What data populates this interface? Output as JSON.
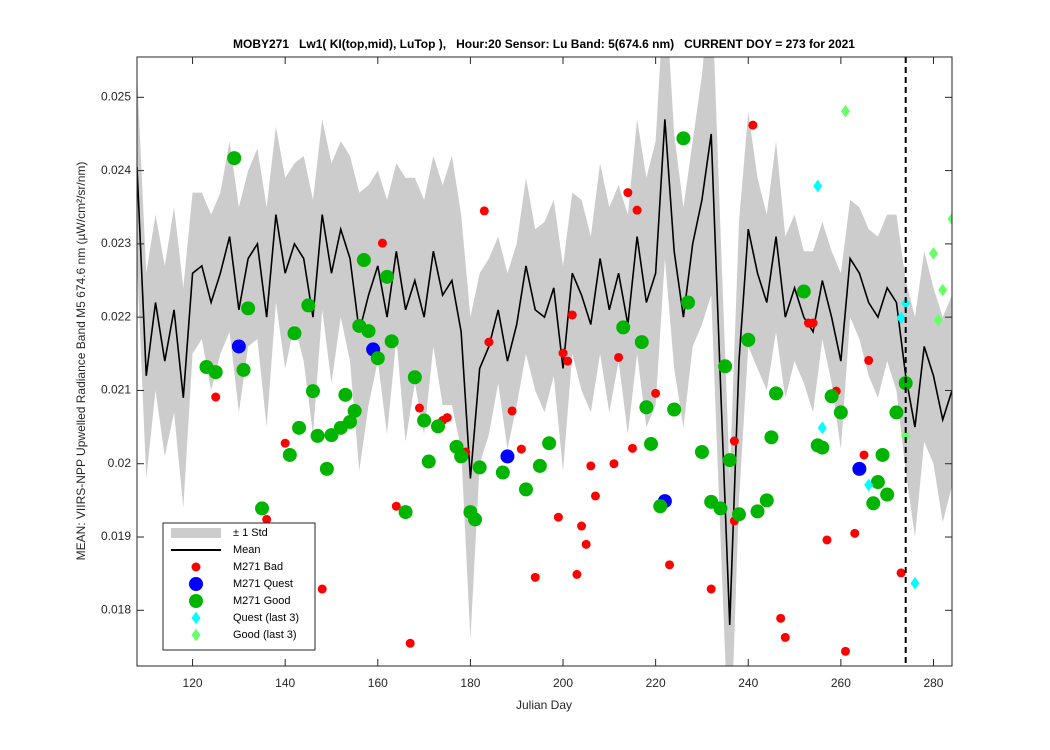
{
  "chart_data": {
    "type": "scatter",
    "title": "MOBY271   Lw1( KI(top,mid), LuTop ),   Hour:20 Sensor: Lu Band: 5(674.6 nm)   CURRENT DOY = 273 for 2021",
    "xlabel": "Julian Day",
    "ylabel": "MEAN: VIIRS-NPP Upwelled Radiance Band M5 674.6 nm (µW/cm²/sr/nm)",
    "xlim": [
      108,
      284
    ],
    "ylim": [
      0.01724,
      0.02555
    ],
    "xticks": [
      120,
      140,
      160,
      180,
      200,
      220,
      240,
      260,
      280
    ],
    "yticks": [
      0.018,
      0.019,
      0.02,
      0.021,
      0.022,
      0.023,
      0.024,
      0.025
    ],
    "vline": 274,
    "legend": "southwest",
    "series": [
      {
        "name": "± 1 Std",
        "kind": "band",
        "color": "#cccccc",
        "x": [
          108,
          110,
          112,
          114,
          116,
          118,
          120,
          122,
          124,
          126,
          128,
          130,
          132,
          134,
          136,
          138,
          140,
          142,
          144,
          146,
          148,
          150,
          152,
          154,
          156,
          158,
          160,
          162,
          164,
          166,
          168,
          170,
          172,
          174,
          176,
          178,
          180,
          182,
          184,
          186,
          188,
          190,
          192,
          194,
          196,
          198,
          200,
          202,
          204,
          206,
          208,
          210,
          212,
          214,
          216,
          218,
          220,
          222,
          224,
          226,
          228,
          230,
          232,
          234,
          236,
          238,
          240,
          242,
          244,
          246,
          248,
          250,
          252,
          254,
          256,
          258,
          260,
          262,
          264,
          266,
          268,
          270,
          272,
          274,
          276,
          278,
          280,
          282,
          284
        ],
        "values": [
          0.0013,
          0.0014,
          0.0012,
          0.0013,
          0.0014,
          0.0015,
          0.0011,
          0.001,
          0.0012,
          0.0011,
          0.0013,
          0.0014,
          0.0012,
          0.0013,
          0.0015,
          0.0012,
          0.0013,
          0.0011,
          0.0014,
          0.0016,
          0.0013,
          0.0015,
          0.0012,
          0.0014,
          0.0019,
          0.0015,
          0.0013,
          0.0016,
          0.0012,
          0.0018,
          0.0014,
          0.0016,
          0.0013,
          0.0015,
          0.0017,
          0.0016,
          0.0022,
          0.0013,
          0.0012,
          0.001,
          0.0012,
          0.0011,
          0.0012,
          0.0011,
          0.0013,
          0.0012,
          0.0014,
          0.0011,
          0.0013,
          0.0012,
          0.0013,
          0.0014,
          0.0012,
          0.0015,
          0.0016,
          0.0017,
          0.0018,
          0.0019,
          0.0016,
          0.0015,
          0.0014,
          0.0017,
          0.0022,
          0.0021,
          0.002,
          0.0019,
          0.0016,
          0.0013,
          0.0012,
          0.0013,
          0.0011,
          0.001,
          0.0009,
          0.0011,
          0.0008,
          0.0009,
          0.0012,
          0.0008,
          0.0009,
          0.001,
          0.0011,
          0.001,
          0.0012,
          0.0013,
          0.0015,
          0.0013,
          0.0012,
          0.0014,
          0.0013
        ]
      },
      {
        "name": "Mean",
        "kind": "line",
        "color": "#000000",
        "x": [
          108,
          110,
          112,
          114,
          116,
          118,
          120,
          122,
          124,
          126,
          128,
          130,
          132,
          134,
          136,
          138,
          140,
          142,
          144,
          146,
          148,
          150,
          152,
          154,
          156,
          158,
          160,
          162,
          164,
          166,
          168,
          170,
          172,
          174,
          176,
          178,
          180,
          182,
          184,
          186,
          188,
          190,
          192,
          194,
          196,
          198,
          200,
          202,
          204,
          206,
          208,
          210,
          212,
          214,
          216,
          218,
          220,
          222,
          224,
          226,
          228,
          230,
          232,
          234,
          236,
          238,
          240,
          242,
          244,
          246,
          248,
          250,
          252,
          254,
          256,
          258,
          260,
          262,
          264,
          266,
          268,
          270,
          272,
          274,
          276,
          278,
          280,
          282,
          284
        ],
        "values": [
          0.02405,
          0.0212,
          0.0222,
          0.0214,
          0.0221,
          0.0209,
          0.0226,
          0.0227,
          0.0222,
          0.0226,
          0.0231,
          0.0221,
          0.0228,
          0.023,
          0.022,
          0.0234,
          0.0226,
          0.023,
          0.0228,
          0.022,
          0.0234,
          0.0226,
          0.0232,
          0.0228,
          0.0218,
          0.0223,
          0.0227,
          0.022,
          0.0229,
          0.0221,
          0.0225,
          0.022,
          0.0229,
          0.0223,
          0.0225,
          0.0218,
          0.0198,
          0.0213,
          0.0216,
          0.0221,
          0.0214,
          0.0219,
          0.0227,
          0.0221,
          0.022,
          0.0224,
          0.0213,
          0.0226,
          0.0223,
          0.0219,
          0.0228,
          0.0221,
          0.0226,
          0.0219,
          0.0231,
          0.0222,
          0.0226,
          0.0247,
          0.0229,
          0.022,
          0.023,
          0.0236,
          0.0245,
          0.0211,
          0.0178,
          0.0214,
          0.0232,
          0.0226,
          0.0222,
          0.0231,
          0.022,
          0.0224,
          0.022,
          0.0218,
          0.0225,
          0.022,
          0.0214,
          0.0228,
          0.0226,
          0.0222,
          0.022,
          0.0224,
          0.0222,
          0.0212,
          0.0205,
          0.0216,
          0.0212,
          0.0206,
          0.021
        ]
      },
      {
        "name": "M271 Bad",
        "kind": "scatter",
        "marker": "circle",
        "size": 4.5,
        "color": "#ff0000",
        "x": [
          125,
          136,
          140,
          148,
          161,
          164,
          167,
          169,
          174,
          175,
          179,
          183,
          184,
          189,
          191,
          194,
          199,
          200,
          201,
          202,
          203,
          204,
          205,
          206,
          207,
          211,
          212,
          214,
          215,
          216,
          220,
          223,
          232,
          237,
          237,
          241,
          247,
          248,
          253,
          254,
          257,
          259,
          261,
          263,
          265,
          266,
          273
        ],
        "values": [
          0.02091,
          0.01924,
          0.02028,
          0.01829,
          0.02301,
          0.01942,
          0.01755,
          0.02076,
          0.02059,
          0.02063,
          0.02016,
          0.02345,
          0.02166,
          0.02072,
          0.0202,
          0.01845,
          0.01927,
          0.02151,
          0.0214,
          0.02203,
          0.01849,
          0.01915,
          0.0189,
          0.01997,
          0.01956,
          0.02,
          0.02145,
          0.0237,
          0.02021,
          0.02346,
          0.02096,
          0.01862,
          0.01829,
          0.02031,
          0.01922,
          0.02462,
          0.01789,
          0.01763,
          0.02192,
          0.02192,
          0.01896,
          0.02099,
          0.01744,
          0.01905,
          0.02012,
          0.02141,
          0.01851
        ]
      },
      {
        "name": "M271 Quest",
        "kind": "scatter",
        "marker": "circle",
        "size": 7,
        "color": "#0000ff",
        "x": [
          130,
          159,
          188,
          222,
          264
        ],
        "values": [
          0.0216,
          0.02156,
          0.0201,
          0.01949,
          0.01993
        ]
      },
      {
        "name": "M271 Good",
        "kind": "scatter",
        "marker": "circle",
        "size": 7,
        "color": "#00b400",
        "x": [
          129,
          132,
          123,
          125,
          131,
          135,
          142,
          141,
          143,
          145,
          146,
          147,
          149,
          150,
          152,
          153,
          154,
          155,
          156,
          157,
          158,
          160,
          162,
          163,
          166,
          168,
          170,
          171,
          173,
          177,
          178,
          180,
          181,
          182,
          187,
          192,
          195,
          197,
          213,
          217,
          218,
          219,
          221,
          224,
          226,
          227,
          230,
          232,
          234,
          235,
          236,
          238,
          240,
          242,
          244,
          245,
          246,
          252,
          255,
          256,
          258,
          260,
          267,
          268,
          269,
          270,
          272,
          274
        ],
        "values": [
          0.02417,
          0.02212,
          0.02132,
          0.02125,
          0.02128,
          0.01939,
          0.02178,
          0.02012,
          0.02049,
          0.02216,
          0.02099,
          0.02038,
          0.01993,
          0.02039,
          0.02049,
          0.02094,
          0.02057,
          0.02072,
          0.02188,
          0.02278,
          0.02181,
          0.02144,
          0.02255,
          0.02167,
          0.01934,
          0.02118,
          0.02059,
          0.02003,
          0.02051,
          0.02023,
          0.0201,
          0.01934,
          0.01924,
          0.01995,
          0.01988,
          0.01965,
          0.01997,
          0.02028,
          0.02186,
          0.02166,
          0.02077,
          0.02027,
          0.01942,
          0.02074,
          0.02444,
          0.0222,
          0.02016,
          0.01948,
          0.01939,
          0.02133,
          0.02005,
          0.01931,
          0.02169,
          0.01935,
          0.0195,
          0.02036,
          0.02096,
          0.02235,
          0.02025,
          0.02022,
          0.02092,
          0.0207,
          0.01946,
          0.01975,
          0.02012,
          0.01958,
          0.0207,
          0.0211
        ]
      },
      {
        "name": "Quest (last 3)",
        "kind": "scatter",
        "marker": "diamond",
        "size": 4.5,
        "color": "#00ffff",
        "x": [
          255,
          256,
          266,
          273,
          274,
          276
        ],
        "values": [
          0.02379,
          0.02049,
          0.01971,
          0.02199,
          0.02219,
          0.01837
        ]
      },
      {
        "name": "Good (last 3)",
        "kind": "scatter",
        "marker": "diamond",
        "size": 4.5,
        "color": "#66ff66",
        "x": [
          261,
          274,
          280,
          281,
          282,
          284
        ],
        "values": [
          0.02481,
          0.02038,
          0.02287,
          0.02196,
          0.02237,
          0.02334
        ]
      }
    ]
  }
}
